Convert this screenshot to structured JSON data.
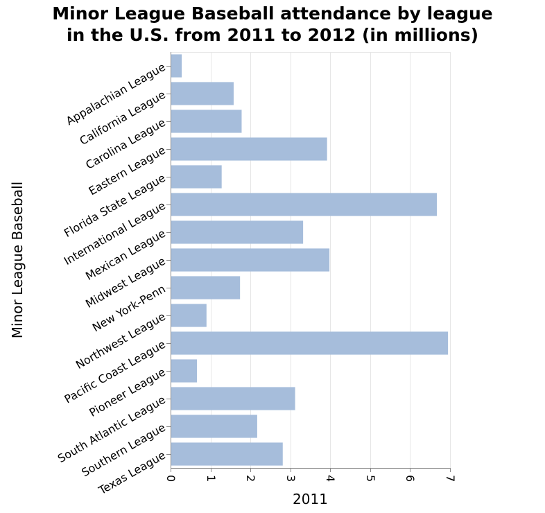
{
  "chart_data": {
    "type": "bar",
    "orientation": "horizontal",
    "title_lines": [
      "Minor League Baseball attendance by league",
      "in the U.S. from 2011 to 2012 (in millions)"
    ],
    "xlabel": "2011",
    "ylabel": "Minor League Baseball",
    "xlim": [
      0,
      7
    ],
    "xticks": [
      "0",
      "1",
      "2",
      "3",
      "4",
      "5",
      "6",
      "7"
    ],
    "grid": true,
    "bar_color": "#a6bddb",
    "categories": [
      "Appalachian League",
      "California League",
      "Carolina League",
      "Eastern League",
      "Florida State League",
      "International League",
      "Mexican League",
      "Midwest League",
      "New York-Penn",
      "Northwest League",
      "Pacific Coast League",
      "Pioneer League",
      "South Atlantic League",
      "Southern League",
      "Texas League"
    ],
    "values": [
      0.28,
      1.58,
      1.78,
      3.92,
      1.28,
      6.67,
      3.32,
      3.98,
      1.74,
      0.9,
      6.95,
      0.66,
      3.12,
      2.17,
      2.81
    ]
  }
}
